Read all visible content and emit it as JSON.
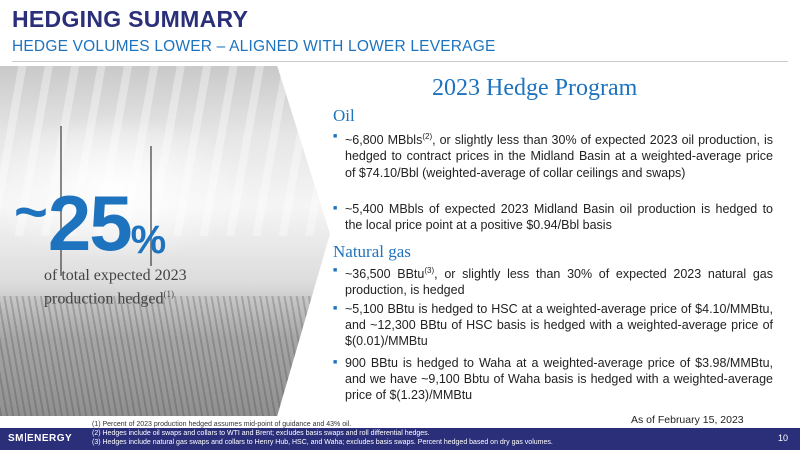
{
  "header": {
    "title": "HEDGING SUMMARY",
    "subtitle": "HEDGE VOLUMES LOWER – ALIGNED WITH LOWER LEVERAGE"
  },
  "highlight": {
    "tilde": "~",
    "value": "25",
    "sign": "%",
    "caption_line1": "of total expected 2023",
    "caption_line2": "production hedged",
    "caption_ref": "(1)"
  },
  "program": {
    "title": "2023 Hedge Program",
    "oil": {
      "heading": "Oil",
      "bullet1_a": "~6,800 MBbls",
      "bullet1_ref": "(2)",
      "bullet1_b": ", or slightly less than 30% of expected 2023 oil production, is hedged to contract prices in the Midland Basin at a weighted-average price of $74.10/Bbl (weighted-average of collar ceilings and swaps)",
      "bullet2": "~5,400 MBbls of expected 2023 Midland Basin oil production is hedged to the local price point at a positive $0.94/Bbl basis"
    },
    "gas": {
      "heading": "Natural gas",
      "bullet1_a": "~36,500 BBtu",
      "bullet1_ref": "(3)",
      "bullet1_b": ", or slightly less than 30% of expected 2023 natural gas production, is hedged",
      "bullet2": "~5,100 BBtu is hedged to HSC at a weighted-average price of $4.10/MMBtu, and ~12,300 BBtu of HSC basis is hedged with a weighted-average price of $(0.01)/MMBtu",
      "bullet3": "900 BBtu is hedged to Waha at a weighted-average price of $3.98/MMBtu, and we have ~9,100 Bbtu of Waha basis is hedged with a weighted-average price of $(1.23)/MMBtu"
    }
  },
  "as_of": "As of February 15, 2023",
  "footnotes": [
    "(1)   Percent of 2023 production hedged assumes mid-point of guidance and 43% oil.",
    "(2)   Hedges include oil swaps and collars to WTI and Brent; excludes basis swaps and roll differential hedges.",
    "(3)   Hedges include natural gas swaps and collars to Henry Hub, HSC, and Waha; excludes basis swaps. Percent hedged based on dry gas volumes."
  ],
  "footer": {
    "logo_left": "SM",
    "logo_right": "ENERGY",
    "page_number": "10"
  },
  "colors": {
    "navy": "#2b2f7a",
    "blue": "#1e73be"
  }
}
